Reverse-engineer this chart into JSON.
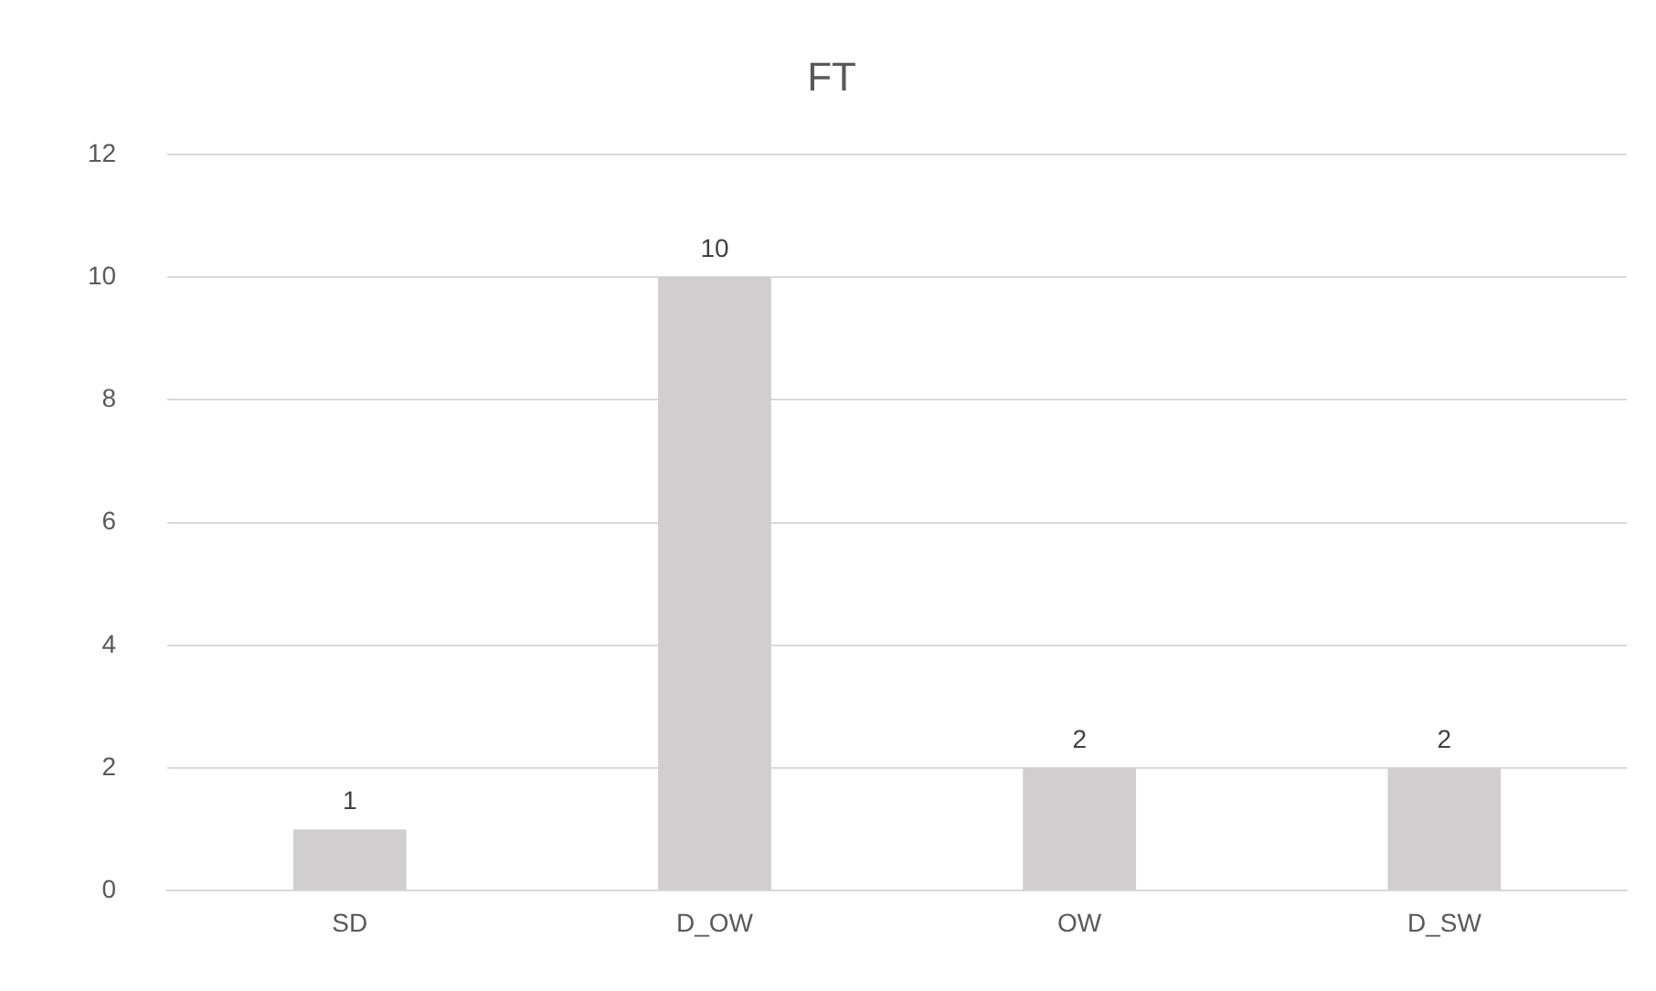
{
  "chart_data": {
    "type": "bar",
    "title": "FT",
    "categories": [
      "SD",
      "D_OW",
      "OW",
      "D_SW"
    ],
    "values": [
      1,
      10,
      2,
      2
    ],
    "color": "#d0cece",
    "ylim": [
      0,
      12
    ],
    "yticks": [
      0,
      2,
      4,
      6,
      8,
      10,
      12
    ],
    "grid": "y",
    "data_labels": true
  }
}
